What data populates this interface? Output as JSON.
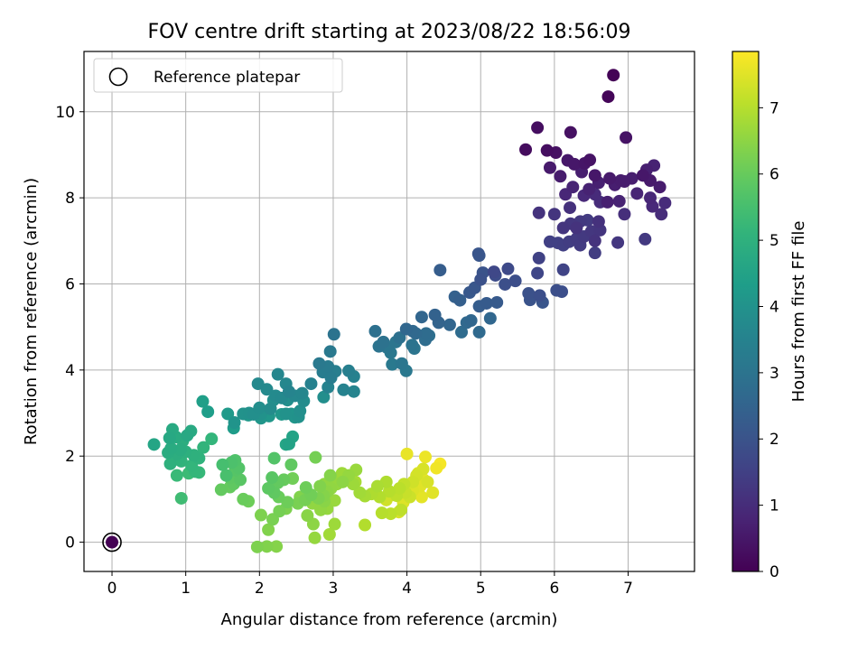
{
  "chart_data": {
    "type": "scatter",
    "title": "FOV centre drift starting at 2023/08/22 18:56:09",
    "xlabel": "Angular distance from reference (arcmin)",
    "ylabel": "Rotation from reference (arcmin)",
    "xlim": [
      -0.38,
      7.9
    ],
    "ylim": [
      -0.68,
      11.4
    ],
    "xticks": [
      0,
      1,
      2,
      3,
      4,
      5,
      6,
      7
    ],
    "yticks": [
      0,
      2,
      4,
      6,
      8,
      10
    ],
    "grid": true,
    "legend": {
      "placement": "top-left",
      "entries": [
        "Reference platepar"
      ]
    },
    "colorbar": {
      "label": "Hours from first FF file",
      "range": [
        0,
        7.85
      ],
      "ticks": [
        0,
        1,
        2,
        3,
        4,
        5,
        6,
        7
      ],
      "colormap": "viridis"
    },
    "reference_point": {
      "x": 0,
      "y": 0
    },
    "points": [
      [
        6.8,
        10.85,
        0.05
      ],
      [
        6.73,
        10.35,
        0.1
      ],
      [
        5.77,
        9.63,
        0.3
      ],
      [
        6.22,
        9.52,
        0.35
      ],
      [
        6.97,
        9.4,
        0.4
      ],
      [
        5.61,
        9.12,
        0.25
      ],
      [
        5.9,
        9.1,
        0.3
      ],
      [
        6.02,
        9.05,
        0.35
      ],
      [
        6.48,
        8.88,
        0.4
      ],
      [
        6.41,
        8.8,
        0.45
      ],
      [
        6.18,
        8.87,
        0.5
      ],
      [
        6.27,
        8.78,
        0.5
      ],
      [
        5.94,
        8.7,
        0.55
      ],
      [
        6.08,
        8.5,
        0.6
      ],
      [
        6.37,
        8.6,
        0.65
      ],
      [
        6.55,
        8.52,
        0.5
      ],
      [
        6.75,
        8.45,
        0.55
      ],
      [
        6.9,
        8.4,
        0.6
      ],
      [
        7.05,
        8.45,
        0.65
      ],
      [
        7.25,
        8.65,
        0.7
      ],
      [
        7.35,
        8.75,
        0.75
      ],
      [
        7.2,
        8.52,
        0.5
      ],
      [
        7.3,
        8.4,
        0.55
      ],
      [
        7.43,
        8.25,
        0.6
      ],
      [
        6.6,
        8.35,
        0.7
      ],
      [
        6.82,
        8.3,
        0.65
      ],
      [
        6.95,
        8.38,
        0.6
      ],
      [
        6.47,
        8.2,
        0.75
      ],
      [
        6.25,
        8.25,
        0.8
      ],
      [
        6.15,
        8.08,
        0.85
      ],
      [
        6.4,
        8.05,
        0.9
      ],
      [
        6.55,
        8.08,
        0.95
      ],
      [
        6.62,
        7.9,
        1.0
      ],
      [
        6.72,
        7.9,
        0.7
      ],
      [
        6.88,
        7.92,
        0.75
      ],
      [
        7.12,
        8.1,
        0.8
      ],
      [
        7.3,
        8.0,
        0.85
      ],
      [
        7.33,
        7.8,
        0.9
      ],
      [
        7.5,
        7.88,
        0.95
      ],
      [
        7.45,
        7.62,
        1.0
      ],
      [
        6.95,
        7.62,
        1.05
      ],
      [
        6.21,
        7.77,
        1.1
      ],
      [
        5.79,
        7.65,
        1.15
      ],
      [
        6.0,
        7.62,
        1.2
      ],
      [
        6.22,
        7.4,
        1.25
      ],
      [
        6.35,
        7.45,
        1.3
      ],
      [
        6.45,
        7.48,
        1.35
      ],
      [
        6.6,
        7.45,
        1.1
      ],
      [
        6.3,
        7.3,
        1.15
      ],
      [
        6.12,
        7.3,
        1.2
      ],
      [
        6.5,
        7.22,
        1.25
      ],
      [
        6.4,
        7.1,
        1.3
      ],
      [
        6.3,
        7.05,
        1.35
      ],
      [
        6.2,
        6.98,
        1.4
      ],
      [
        6.12,
        6.9,
        1.45
      ],
      [
        6.05,
        6.95,
        1.5
      ],
      [
        6.55,
        7.0,
        1.15
      ],
      [
        6.62,
        7.25,
        1.2
      ],
      [
        6.86,
        6.96,
        1.25
      ],
      [
        7.23,
        7.04,
        1.3
      ],
      [
        6.55,
        6.72,
        1.4
      ],
      [
        6.35,
        6.9,
        1.35
      ],
      [
        5.94,
        6.98,
        1.5
      ],
      [
        5.79,
        6.6,
        1.55
      ],
      [
        6.12,
        6.33,
        1.6
      ],
      [
        5.77,
        6.25,
        1.65
      ],
      [
        5.18,
        6.28,
        1.7
      ],
      [
        5.37,
        6.35,
        1.75
      ],
      [
        5.2,
        6.2,
        1.8
      ],
      [
        5.47,
        6.07,
        1.85
      ],
      [
        5.33,
        5.99,
        1.9
      ],
      [
        5.0,
        6.1,
        1.95
      ],
      [
        5.03,
        6.26,
        2.0
      ],
      [
        4.97,
        6.7,
        2.05
      ],
      [
        4.98,
        6.66,
        2.1
      ],
      [
        6.03,
        5.85,
        1.9
      ],
      [
        6.1,
        5.82,
        1.85
      ],
      [
        5.8,
        5.73,
        1.9
      ],
      [
        5.65,
        5.78,
        1.95
      ],
      [
        5.67,
        5.63,
        2.0
      ],
      [
        5.84,
        5.57,
        2.05
      ],
      [
        4.92,
        5.91,
        2.1
      ],
      [
        4.85,
        5.8,
        2.15
      ],
      [
        5.22,
        5.57,
        2.2
      ],
      [
        5.08,
        5.55,
        2.25
      ],
      [
        4.98,
        5.48,
        2.3
      ],
      [
        4.72,
        5.62,
        2.35
      ],
      [
        4.65,
        5.7,
        2.4
      ],
      [
        4.45,
        6.32,
        2.3
      ],
      [
        4.38,
        5.28,
        2.45
      ],
      [
        4.43,
        5.1,
        2.5
      ],
      [
        4.58,
        5.05,
        2.55
      ],
      [
        4.87,
        5.15,
        2.6
      ],
      [
        4.81,
        5.1,
        2.65
      ],
      [
        4.98,
        4.88,
        2.7
      ],
      [
        4.74,
        4.88,
        2.75
      ],
      [
        5.13,
        5.2,
        2.6
      ],
      [
        4.2,
        5.23,
        2.55
      ],
      [
        3.99,
        4.95,
        2.6
      ],
      [
        4.08,
        4.9,
        2.65
      ],
      [
        4.12,
        4.85,
        2.7
      ],
      [
        4.26,
        4.85,
        2.75
      ],
      [
        4.25,
        4.7,
        2.8
      ],
      [
        4.3,
        4.8,
        2.85
      ],
      [
        3.9,
        4.75,
        2.9
      ],
      [
        3.68,
        4.65,
        2.95
      ],
      [
        3.62,
        4.55,
        3.0
      ],
      [
        3.85,
        4.65,
        3.05
      ],
      [
        3.73,
        4.52,
        3.1
      ],
      [
        3.78,
        4.4,
        3.15
      ],
      [
        4.07,
        4.58,
        3.0
      ],
      [
        4.1,
        4.5,
        3.05
      ],
      [
        3.57,
        4.9,
        2.9
      ],
      [
        3.01,
        4.83,
        3.0
      ],
      [
        3.93,
        4.15,
        3.1
      ],
      [
        3.99,
        3.98,
        3.15
      ],
      [
        3.8,
        4.13,
        3.2
      ],
      [
        2.81,
        4.15,
        3.2
      ],
      [
        2.93,
        4.08,
        3.25
      ],
      [
        2.86,
        3.95,
        3.3
      ],
      [
        2.96,
        4.43,
        3.2
      ],
      [
        2.97,
        3.82,
        3.3
      ],
      [
        3.03,
        3.97,
        3.35
      ],
      [
        3.21,
        3.98,
        3.4
      ],
      [
        3.28,
        3.85,
        3.45
      ],
      [
        3.14,
        3.54,
        3.5
      ],
      [
        3.28,
        3.5,
        3.55
      ],
      [
        2.93,
        3.6,
        3.5
      ],
      [
        2.7,
        3.68,
        3.45
      ],
      [
        2.58,
        3.46,
        3.6
      ],
      [
        2.48,
        3.4,
        3.65
      ],
      [
        2.4,
        3.5,
        3.55
      ],
      [
        2.3,
        3.35,
        3.7
      ],
      [
        2.22,
        3.4,
        3.75
      ],
      [
        2.25,
        3.9,
        3.6
      ],
      [
        2.36,
        3.68,
        3.65
      ],
      [
        1.98,
        3.68,
        3.7
      ],
      [
        2.15,
        3.1,
        3.8
      ],
      [
        2.1,
        3.55,
        3.75
      ],
      [
        2.0,
        3.12,
        3.85
      ],
      [
        1.92,
        2.97,
        3.9
      ],
      [
        1.86,
        3.0,
        3.95
      ],
      [
        1.78,
        2.98,
        4.0
      ],
      [
        1.66,
        2.78,
        4.05
      ],
      [
        2.02,
        2.88,
        4.1
      ],
      [
        2.13,
        2.93,
        4.15
      ],
      [
        2.55,
        3.05,
        3.9
      ],
      [
        2.36,
        2.98,
        4.0
      ],
      [
        2.43,
        2.98,
        4.05
      ],
      [
        2.48,
        2.9,
        4.1
      ],
      [
        2.38,
        3.3,
        3.85
      ],
      [
        1.85,
        2.95,
        4.2
      ],
      [
        1.57,
        2.98,
        4.25
      ],
      [
        1.65,
        2.65,
        4.3
      ],
      [
        1.3,
        3.03,
        4.35
      ],
      [
        1.23,
        3.27,
        4.4
      ],
      [
        2.3,
        2.97,
        4.15
      ],
      [
        2.19,
        3.3,
        3.9
      ],
      [
        2.6,
        3.28,
        3.8
      ],
      [
        2.87,
        3.37,
        3.85
      ],
      [
        2.53,
        2.91,
        3.95
      ],
      [
        2.02,
        2.98,
        4.0
      ],
      [
        1.78,
        2.98,
        4.1
      ],
      [
        2.4,
        2.28,
        4.5
      ],
      [
        2.45,
        2.45,
        4.55
      ],
      [
        2.36,
        2.27,
        4.6
      ],
      [
        0.57,
        2.27,
        4.6
      ],
      [
        0.78,
        2.42,
        4.7
      ],
      [
        0.82,
        2.62,
        4.75
      ],
      [
        0.87,
        2.44,
        4.8
      ],
      [
        0.93,
        2.15,
        4.85
      ],
      [
        1.02,
        2.48,
        4.7
      ],
      [
        1.07,
        2.58,
        4.75
      ],
      [
        0.96,
        2.35,
        4.9
      ],
      [
        0.8,
        2.18,
        4.8
      ],
      [
        0.76,
        2.08,
        4.85
      ],
      [
        0.88,
        2.05,
        4.9
      ],
      [
        1.0,
        2.1,
        4.95
      ],
      [
        1.11,
        2.02,
        5.0
      ],
      [
        1.18,
        1.95,
        5.05
      ],
      [
        1.24,
        2.2,
        5.1
      ],
      [
        1.35,
        2.4,
        5.15
      ],
      [
        0.79,
        1.82,
        5.0
      ],
      [
        0.9,
        1.92,
        5.05
      ],
      [
        0.94,
        1.88,
        5.1
      ],
      [
        1.08,
        1.78,
        5.15
      ],
      [
        1.13,
        1.64,
        5.2
      ],
      [
        1.18,
        1.62,
        5.25
      ],
      [
        0.88,
        1.55,
        5.3
      ],
      [
        1.04,
        1.6,
        5.35
      ],
      [
        0.94,
        1.02,
        5.4
      ],
      [
        1.5,
        1.8,
        5.5
      ],
      [
        1.55,
        1.55,
        5.55
      ],
      [
        1.62,
        1.85,
        5.6
      ],
      [
        1.67,
        1.9,
        5.65
      ],
      [
        1.72,
        1.72,
        5.7
      ],
      [
        1.67,
        1.67,
        5.75
      ],
      [
        1.74,
        1.45,
        5.8
      ],
      [
        1.6,
        1.5,
        5.85
      ],
      [
        1.65,
        1.35,
        5.9
      ],
      [
        1.48,
        1.22,
        5.95
      ],
      [
        1.6,
        1.28,
        6.0
      ],
      [
        1.78,
        1.0,
        6.05
      ],
      [
        1.85,
        0.95,
        6.1
      ],
      [
        2.2,
        1.95,
        5.7
      ],
      [
        2.17,
        1.5,
        5.8
      ],
      [
        2.12,
        1.25,
        5.85
      ],
      [
        2.2,
        1.15,
        5.9
      ],
      [
        2.25,
        1.38,
        5.95
      ],
      [
        2.33,
        1.45,
        6.0
      ],
      [
        2.26,
        1.05,
        6.05
      ],
      [
        2.38,
        0.93,
        6.1
      ],
      [
        2.45,
        1.48,
        6.15
      ],
      [
        2.27,
        0.72,
        6.2
      ],
      [
        2.18,
        0.53,
        6.25
      ],
      [
        2.36,
        0.78,
        6.3
      ],
      [
        2.55,
        1.05,
        6.35
      ],
      [
        2.63,
        1.27,
        6.1
      ],
      [
        2.7,
        1.1,
        6.15
      ],
      [
        2.62,
        0.98,
        6.2
      ],
      [
        2.52,
        0.9,
        6.25
      ],
      [
        2.8,
        1.02,
        6.3
      ],
      [
        2.82,
        1.3,
        6.35
      ],
      [
        2.87,
        1.08,
        6.4
      ],
      [
        2.88,
        0.95,
        6.45
      ],
      [
        2.92,
        1.17,
        6.5
      ],
      [
        2.97,
        1.25,
        6.55
      ],
      [
        3.05,
        1.35,
        6.6
      ],
      [
        3.02,
        0.97,
        6.65
      ],
      [
        2.72,
        0.9,
        6.55
      ],
      [
        2.65,
        0.62,
        6.45
      ],
      [
        2.73,
        0.42,
        6.5
      ],
      [
        2.83,
        0.75,
        6.55
      ],
      [
        2.92,
        0.78,
        6.6
      ],
      [
        3.02,
        0.42,
        6.7
      ],
      [
        2.95,
        0.18,
        6.75
      ],
      [
        2.75,
        0.1,
        6.6
      ],
      [
        2.02,
        0.63,
        6.3
      ],
      [
        2.12,
        0.29,
        6.35
      ],
      [
        1.97,
        -0.11,
        6.3
      ],
      [
        2.1,
        -0.1,
        6.35
      ],
      [
        2.23,
        -0.1,
        6.4
      ],
      [
        2.76,
        1.97,
        6.2
      ],
      [
        2.96,
        1.55,
        6.4
      ],
      [
        3.13,
        1.4,
        6.5
      ],
      [
        3.21,
        1.55,
        6.6
      ],
      [
        3.31,
        1.68,
        6.65
      ],
      [
        3.27,
        1.35,
        6.7
      ],
      [
        3.36,
        1.15,
        6.75
      ],
      [
        3.43,
        1.07,
        6.8
      ],
      [
        3.6,
        1.3,
        6.85
      ],
      [
        3.72,
        1.4,
        6.9
      ],
      [
        3.63,
        1.05,
        6.95
      ],
      [
        3.76,
        1.18,
        7.0
      ],
      [
        3.9,
        1.25,
        7.05
      ],
      [
        3.86,
        1.08,
        7.1
      ],
      [
        3.96,
        1.35,
        7.15
      ],
      [
        3.98,
        1.15,
        7.2
      ],
      [
        3.66,
        0.68,
        7.0
      ],
      [
        3.78,
        0.66,
        7.05
      ],
      [
        3.92,
        0.75,
        7.1
      ],
      [
        3.43,
        0.4,
        6.95
      ],
      [
        3.52,
        1.12,
        6.9
      ],
      [
        4.04,
        1.05,
        7.25
      ],
      [
        4.08,
        1.4,
        7.3
      ],
      [
        4.13,
        1.55,
        7.35
      ],
      [
        4.22,
        1.7,
        7.4
      ],
      [
        4.15,
        1.6,
        7.45
      ],
      [
        4.18,
        1.3,
        7.5
      ],
      [
        4.23,
        1.45,
        7.55
      ],
      [
        4.0,
        2.05,
        7.6
      ],
      [
        4.25,
        1.98,
        7.65
      ],
      [
        4.4,
        1.72,
        7.7
      ],
      [
        4.45,
        1.82,
        7.75
      ],
      [
        4.35,
        1.15,
        7.5
      ],
      [
        4.2,
        1.05,
        7.55
      ],
      [
        3.95,
        0.92,
        7.45
      ],
      [
        3.89,
        0.7,
        7.4
      ],
      [
        3.81,
        1.1,
        7.35
      ],
      [
        4.08,
        1.2,
        7.45
      ],
      [
        3.3,
        1.4,
        6.8
      ],
      [
        3.12,
        1.6,
        6.7
      ],
      [
        2.98,
        1.45,
        6.65
      ],
      [
        2.88,
        1.35,
        6.55
      ],
      [
        4.28,
        1.4,
        7.4
      ],
      [
        4.02,
        1.3,
        7.5
      ],
      [
        3.72,
        0.98,
        7.3
      ],
      [
        2.43,
        1.8,
        5.9
      ]
    ]
  }
}
